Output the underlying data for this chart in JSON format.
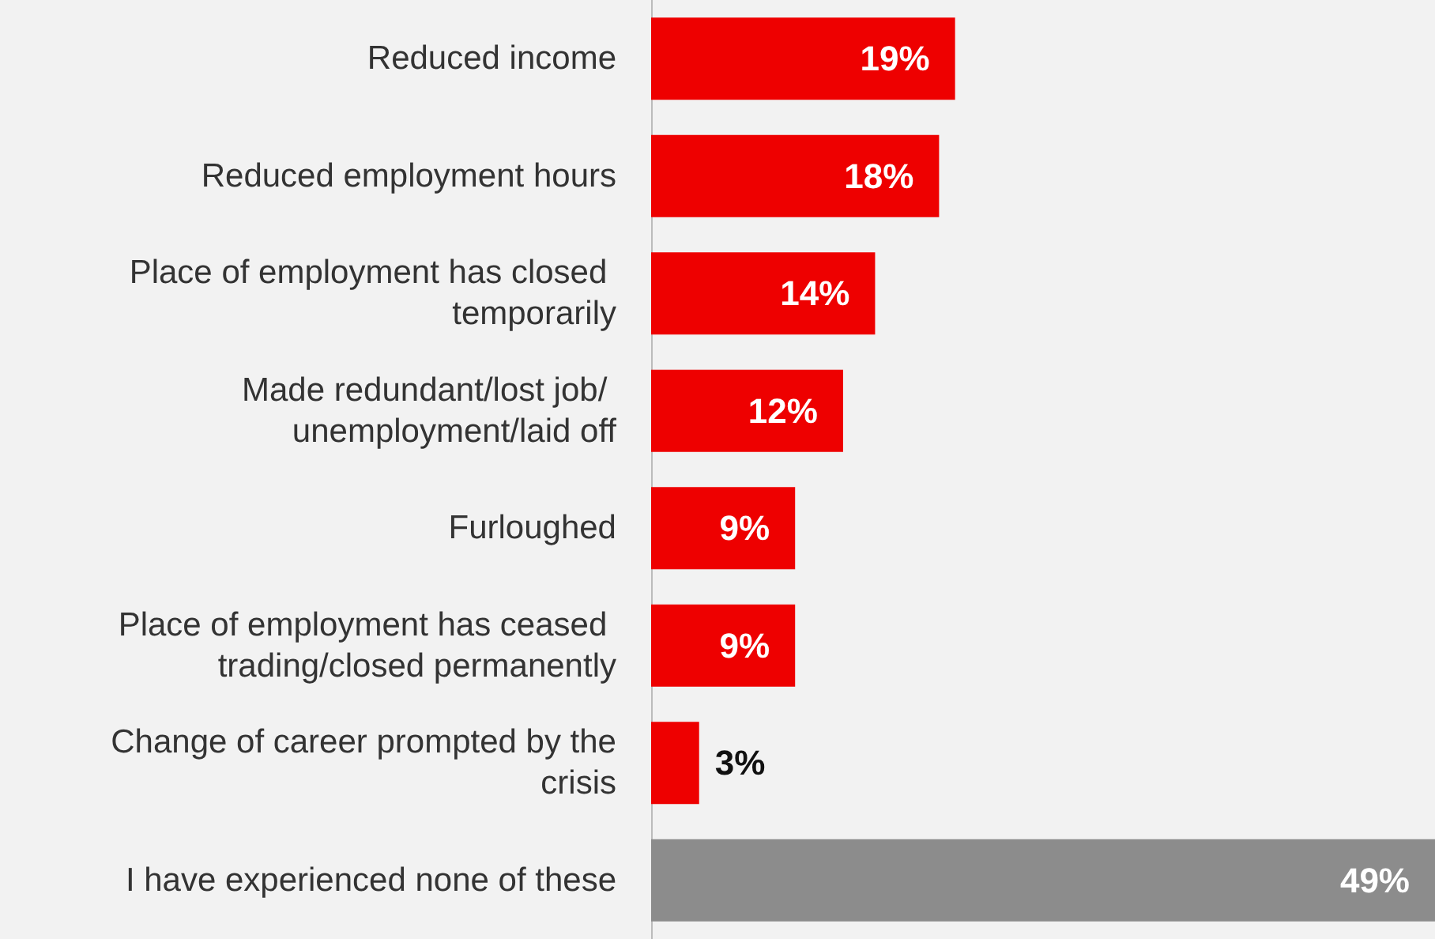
{
  "chart_data": {
    "type": "bar",
    "orientation": "horizontal",
    "categories": [
      "Reduced income",
      "Reduced employment hours",
      "Place of employment has closed temporarily",
      "Made redundant/lost job/ unemployment/laid off",
      "Furloughed",
      "Place of employment has ceased trading/closed permanently",
      "Change of career prompted by the crisis",
      "I have experienced none of these"
    ],
    "values": [
      19,
      18,
      14,
      12,
      9,
      9,
      3,
      49
    ],
    "colors": [
      "#ee0000",
      "#ee0000",
      "#ee0000",
      "#ee0000",
      "#ee0000",
      "#ee0000",
      "#ee0000",
      "#8c8c8c"
    ],
    "value_labels": [
      "19%",
      "18%",
      "14%",
      "12%",
      "9%",
      "9%",
      "3%",
      "49%"
    ]
  }
}
